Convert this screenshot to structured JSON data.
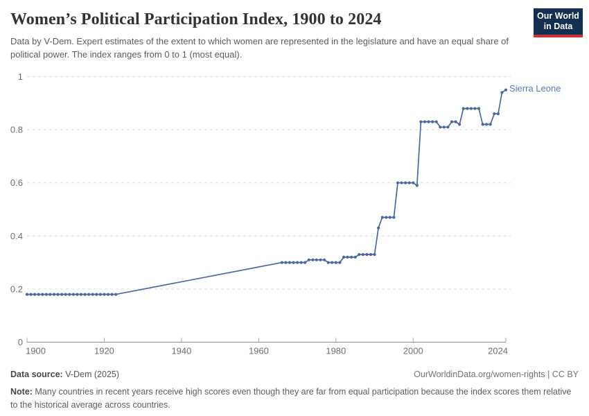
{
  "header": {
    "title": "Women’s Political Participation Index, 1900 to 2024",
    "subtitle": "Data by V-Dem. Expert estimates of the extent to which women are represented in the legislature and have an equal share of political power. The index ranges from 0 to 1 (most equal).",
    "logo": {
      "line1": "Our World",
      "line2": "in Data",
      "bg_color": "#132f52",
      "stripe_color": "#cb3434"
    }
  },
  "chart_data": {
    "type": "line",
    "title": "Women’s Political Participation Index, 1900 to 2024",
    "xlabel": "",
    "ylabel": "",
    "xlim": [
      1900,
      2024
    ],
    "ylim": [
      0,
      1
    ],
    "xticks": [
      1900,
      1920,
      1940,
      1960,
      1980,
      2000,
      2024
    ],
    "yticks": [
      0,
      0.2,
      0.4,
      0.6,
      0.8,
      1
    ],
    "grid": "horizontal-dashed",
    "legend_position": "end-of-line-label",
    "gap_note": "no annual markers between 1923 and 1966; straight interpolated segment",
    "series": [
      {
        "name": "Sierra Leone",
        "color": "#4a67a0",
        "label_color": "#5b7ab5",
        "points": [
          [
            1900,
            0.18
          ],
          [
            1901,
            0.18
          ],
          [
            1902,
            0.18
          ],
          [
            1903,
            0.18
          ],
          [
            1904,
            0.18
          ],
          [
            1905,
            0.18
          ],
          [
            1906,
            0.18
          ],
          [
            1907,
            0.18
          ],
          [
            1908,
            0.18
          ],
          [
            1909,
            0.18
          ],
          [
            1910,
            0.18
          ],
          [
            1911,
            0.18
          ],
          [
            1912,
            0.18
          ],
          [
            1913,
            0.18
          ],
          [
            1914,
            0.18
          ],
          [
            1915,
            0.18
          ],
          [
            1916,
            0.18
          ],
          [
            1917,
            0.18
          ],
          [
            1918,
            0.18
          ],
          [
            1919,
            0.18
          ],
          [
            1920,
            0.18
          ],
          [
            1921,
            0.18
          ],
          [
            1922,
            0.18
          ],
          [
            1923,
            0.18
          ],
          [
            1966,
            0.3
          ],
          [
            1967,
            0.3
          ],
          [
            1968,
            0.3
          ],
          [
            1969,
            0.3
          ],
          [
            1970,
            0.3
          ],
          [
            1971,
            0.3
          ],
          [
            1972,
            0.3
          ],
          [
            1973,
            0.31
          ],
          [
            1974,
            0.31
          ],
          [
            1975,
            0.31
          ],
          [
            1976,
            0.31
          ],
          [
            1977,
            0.31
          ],
          [
            1978,
            0.3
          ],
          [
            1979,
            0.3
          ],
          [
            1980,
            0.3
          ],
          [
            1981,
            0.3
          ],
          [
            1982,
            0.32
          ],
          [
            1983,
            0.32
          ],
          [
            1984,
            0.32
          ],
          [
            1985,
            0.32
          ],
          [
            1986,
            0.33
          ],
          [
            1987,
            0.33
          ],
          [
            1988,
            0.33
          ],
          [
            1989,
            0.33
          ],
          [
            1990,
            0.33
          ],
          [
            1991,
            0.43
          ],
          [
            1992,
            0.47
          ],
          [
            1993,
            0.47
          ],
          [
            1994,
            0.47
          ],
          [
            1995,
            0.47
          ],
          [
            1996,
            0.6
          ],
          [
            1997,
            0.6
          ],
          [
            1998,
            0.6
          ],
          [
            1999,
            0.6
          ],
          [
            2000,
            0.6
          ],
          [
            2001,
            0.59
          ],
          [
            2002,
            0.83
          ],
          [
            2003,
            0.83
          ],
          [
            2004,
            0.83
          ],
          [
            2005,
            0.83
          ],
          [
            2006,
            0.83
          ],
          [
            2007,
            0.81
          ],
          [
            2008,
            0.81
          ],
          [
            2009,
            0.81
          ],
          [
            2010,
            0.83
          ],
          [
            2011,
            0.83
          ],
          [
            2012,
            0.82
          ],
          [
            2013,
            0.88
          ],
          [
            2014,
            0.88
          ],
          [
            2015,
            0.88
          ],
          [
            2016,
            0.88
          ],
          [
            2017,
            0.88
          ],
          [
            2018,
            0.82
          ],
          [
            2019,
            0.82
          ],
          [
            2020,
            0.82
          ],
          [
            2021,
            0.86
          ],
          [
            2022,
            0.86
          ],
          [
            2023,
            0.94
          ],
          [
            2024,
            0.95
          ]
        ]
      }
    ]
  },
  "footer": {
    "source_label": "Data source:",
    "source_value": " V-Dem (2025)",
    "rights": "OurWorldinData.org/women-rights | CC BY",
    "note_label": "Note:",
    "note_text": " Many countries in recent years receive high scores even though they are far from equal participation because the index scores them relative to the historical average across countries."
  }
}
